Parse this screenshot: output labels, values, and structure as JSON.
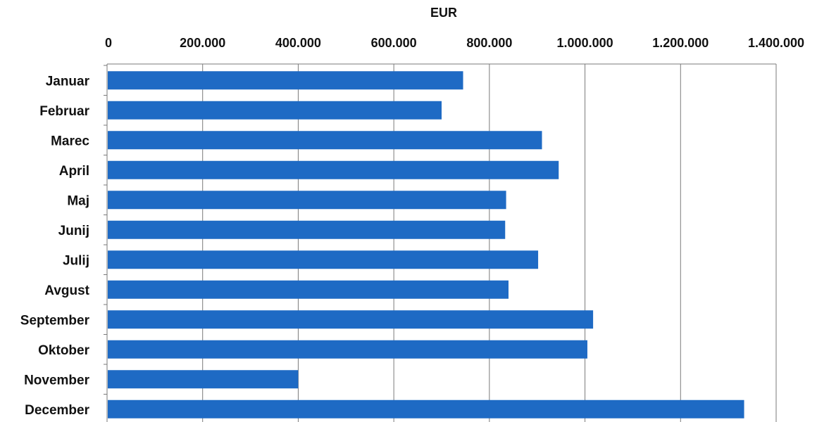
{
  "chart_data": {
    "type": "bar",
    "orientation": "horizontal",
    "title": "",
    "xlabel": "EUR",
    "ylabel": "",
    "xlim": [
      0,
      1400000
    ],
    "tick_values": [
      0,
      200000,
      400000,
      600000,
      800000,
      1000000,
      1200000,
      1400000
    ],
    "tick_labels": [
      "0",
      "200.000",
      "400.000",
      "600.000",
      "800.000",
      "1.000.000",
      "1.200.000",
      "1.400.000"
    ],
    "x_axis_position": "top",
    "grid": true,
    "bar_color": "#1e6ac4",
    "categories": [
      "Januar",
      "Februar",
      "Marec",
      "April",
      "Maj",
      "Junij",
      "Julij",
      "Avgust",
      "September",
      "Oktober",
      "November",
      "December"
    ],
    "values": [
      745000,
      700000,
      910000,
      945000,
      835000,
      833000,
      902000,
      840000,
      1017000,
      1005000,
      400000,
      1333000
    ]
  }
}
